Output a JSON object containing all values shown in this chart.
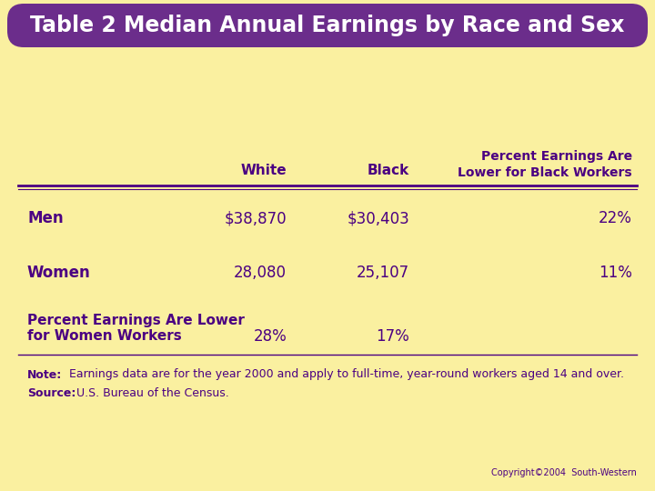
{
  "title": "Table 2 Median Annual Earnings by Race and Sex",
  "title_bg_color": "#6B2D8B",
  "title_text_color": "#FFFFFF",
  "bg_color": "#FAF0A0",
  "table_text_color": "#4B0082",
  "note_bold": "Note:",
  "note_text": " Earnings data are for the year 2000 and apply to full-time, year-round workers aged 14 and over.",
  "source_bold": "Source:",
  "source_text": " U.S. Bureau of the Census.",
  "copyright_text": "Copyright©2004  South-Western",
  "line_color": "#4B0082"
}
